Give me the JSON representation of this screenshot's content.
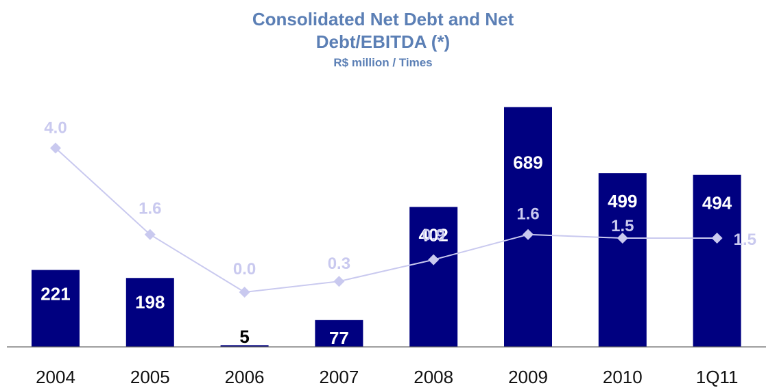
{
  "chart_data": {
    "type": "bar",
    "title_lines": [
      "Consolidated Net Debt and Net",
      "Debt/EBITDA (*)"
    ],
    "subtitle": "R$ million / Times",
    "xlabel": "",
    "ylabel": "",
    "categories": [
      "2004",
      "2005",
      "2006",
      "2007",
      "2008",
      "2009",
      "2010",
      "1Q11"
    ],
    "series": [
      {
        "name": "",
        "type": "bar",
        "values": [
          221,
          198,
          5,
          77,
          402,
          689,
          499,
          494
        ],
        "labels": [
          "221",
          "198",
          "5",
          "77",
          "402",
          "689",
          "499",
          "494"
        ],
        "color": "#000080",
        "ylim": [
          0,
          800
        ]
      },
      {
        "name": "",
        "type": "line",
        "values": [
          4.0,
          1.6,
          0.0,
          0.3,
          0.9,
          1.6,
          1.5,
          1.5
        ],
        "labels": [
          "4.0",
          "1.6",
          "0.0",
          "0.3",
          "0.9",
          "1.6",
          "1.5",
          "1.5"
        ],
        "color": "#c9c9ef",
        "ylim": [
          0,
          4.5
        ]
      }
    ],
    "grid": false,
    "legend": "none"
  }
}
